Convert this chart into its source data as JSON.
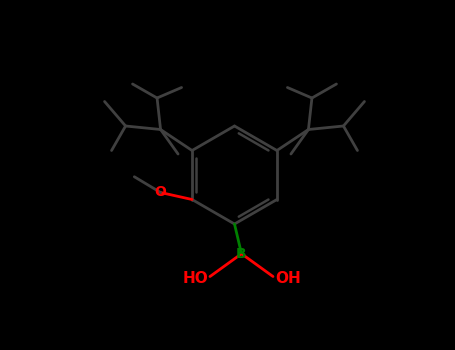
{
  "background_color": "#000000",
  "bond_color": "#404040",
  "bond_color_bright": "#606060",
  "atom_colors": {
    "B": "#008000",
    "O": "#ff0000",
    "C": "#303030",
    "H": "#303030"
  },
  "lw": 2.0,
  "lw_thin": 1.5,
  "fig_width": 4.55,
  "fig_height": 3.5,
  "dpi": 100
}
